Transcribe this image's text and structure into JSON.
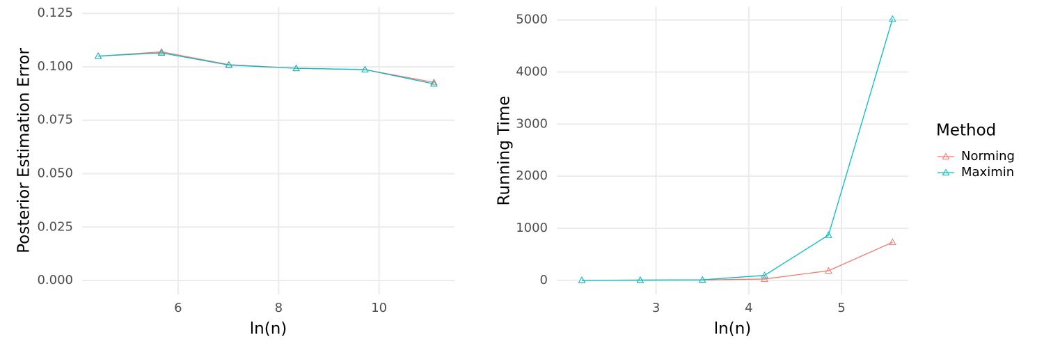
{
  "chart_data": [
    {
      "type": "line",
      "xlabel": "ln(n)",
      "ylabel": "Posterior Estimation Error",
      "x": [
        4.41,
        5.67,
        7.01,
        8.35,
        9.72,
        11.09
      ],
      "series": [
        {
          "color": "#F8766D",
          "values": [
            0.105,
            0.107,
            0.101,
            0.0993,
            0.0987,
            0.0927
          ]
        },
        {
          "color": "#00BFC4",
          "values": [
            0.105,
            0.1065,
            0.1008,
            0.0993,
            0.0987,
            0.092
          ]
        }
      ],
      "xlim": [
        4.09,
        11.5
      ],
      "xticks": [
        6,
        8,
        10
      ],
      "ylim": [
        -0.0065,
        0.128
      ],
      "yticks": [
        {
          "value": 0,
          "label": "0.000"
        },
        {
          "value": 0.025,
          "label": "0.025"
        },
        {
          "value": 0.05,
          "label": "0.050"
        },
        {
          "value": 0.075,
          "label": "0.075"
        },
        {
          "value": 0.1,
          "label": "0.100"
        },
        {
          "value": 0.125,
          "label": "0.125"
        }
      ],
      "grid": true
    },
    {
      "type": "line",
      "xlabel": "ln(n)",
      "ylabel": "Running Time",
      "legend_title": "Method",
      "legend": "right",
      "x": [
        2.2,
        2.83,
        3.5,
        4.17,
        4.86,
        5.55
      ],
      "series": [
        {
          "name": "Norming",
          "color": "#F8766D",
          "values": [
            2,
            3,
            8,
            25,
            185,
            730
          ]
        },
        {
          "name": "Maximin",
          "color": "#00BFC4",
          "values": [
            2,
            5,
            10,
            95,
            870,
            5020
          ]
        }
      ],
      "xlim": [
        1.93,
        5.72
      ],
      "xticks": [
        3,
        4,
        5
      ],
      "ylim": [
        -270,
        5250
      ],
      "yticks": [
        0,
        1000,
        2000,
        3000,
        4000,
        5000
      ],
      "grid": true
    }
  ]
}
